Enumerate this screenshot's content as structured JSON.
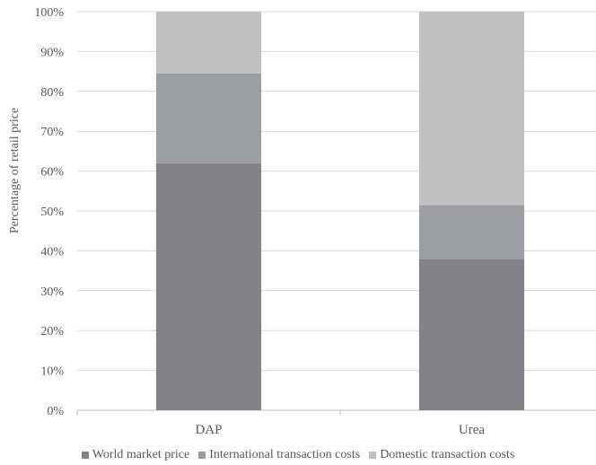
{
  "chart_data": {
    "type": "bar",
    "stacked": true,
    "categories": [
      "DAP",
      "Urea"
    ],
    "series": [
      {
        "name": "World market price",
        "values": [
          62,
          38
        ],
        "color": "#838387"
      },
      {
        "name": "International transaction costs",
        "values": [
          22.5,
          13.5
        ],
        "color": "#9c9ea2"
      },
      {
        "name": "Domestic transaction costs",
        "values": [
          15.5,
          48.5
        ],
        "color": "#c0c0c0"
      }
    ],
    "ylabel": "Percentage of retail price",
    "yticks": [
      "0%",
      "10%",
      "20%",
      "30%",
      "40%",
      "50%",
      "60%",
      "70%",
      "80%",
      "90%",
      "100%"
    ],
    "ylim": [
      0,
      100
    ],
    "grid": true,
    "legend_position": "bottom"
  },
  "colors": {
    "grid": "#d9d9d9",
    "axis": "#bfbfbf",
    "text": "#595959"
  }
}
